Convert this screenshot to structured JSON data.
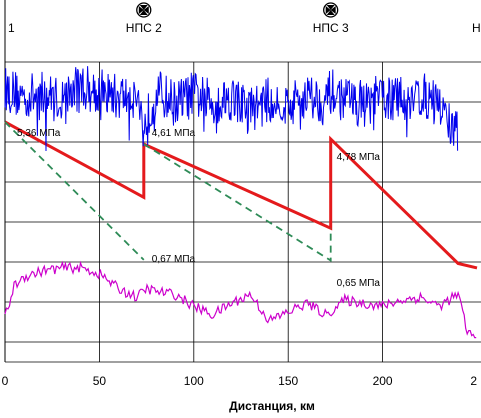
{
  "chart_data": {
    "type": "line",
    "title": "",
    "xlabel": "Дистанция, км",
    "ylabel": "",
    "xlim": [
      0,
      250
    ],
    "x_ticks": [
      "0",
      "50",
      "100",
      "150",
      "200",
      "2"
    ],
    "grid": true,
    "stations": [
      {
        "label": "1",
        "x": 0
      },
      {
        "label": "НПС 2",
        "x": 73.5
      },
      {
        "label": "НПС 3",
        "x": 172.5
      },
      {
        "label": "Н",
        "x": 250
      }
    ],
    "pressure_labels": [
      {
        "label": "5,36 МПа",
        "x": 0
      },
      {
        "label": "4,61 МПа",
        "x": 73.5
      },
      {
        "label": "4,78 МПа",
        "x": 172.5
      },
      {
        "label": "0,67 МПа",
        "x": 73.5
      },
      {
        "label": "0,65 МПа",
        "x": 172.5
      }
    ],
    "series": [
      {
        "role": "pressure_line",
        "color": "#e41a1c",
        "x": [
          0,
          73.5,
          73.5,
          172.5,
          172.5,
          240,
          250
        ],
        "y": [
          5.36,
          2.8,
          4.61,
          1.75,
          4.78,
          0.55,
          0.4
        ]
      },
      {
        "role": "hydraulic_slope_dashed",
        "color": "#2e8b57",
        "x": [
          0,
          73.5,
          73.5,
          73.5,
          172.5,
          172.5
        ],
        "y": [
          5.36,
          0.67,
          null,
          4.61,
          0.65,
          1.75
        ]
      },
      {
        "role": "noisy_upper_profile",
        "color": "#0000ee",
        "x": [
          0,
          10,
          20,
          30,
          40,
          50,
          60,
          70,
          73.5,
          80,
          90,
          100,
          110,
          120,
          130,
          140,
          150,
          160,
          170,
          172.5,
          180,
          190,
          200,
          210,
          220,
          230,
          240
        ],
        "y": [
          6.5,
          6.2,
          6.3,
          6.1,
          6.6,
          6.4,
          6.2,
          6.3,
          5.1,
          6.4,
          6.0,
          6.3,
          6.0,
          6.2,
          5.8,
          6.1,
          5.9,
          6.3,
          6.0,
          6.4,
          6.1,
          6.0,
          6.2,
          6.1,
          6.3,
          5.9,
          4.9
        ]
      },
      {
        "role": "terrain_profile",
        "color": "#cc00cc",
        "x": [
          0,
          5,
          10,
          20,
          30,
          40,
          50,
          60,
          70,
          75,
          80,
          90,
          100,
          110,
          120,
          130,
          140,
          150,
          160,
          170,
          180,
          190,
          200,
          210,
          220,
          230,
          240,
          245,
          250
        ],
        "y": [
          -1.3,
          -0.2,
          0.1,
          0.3,
          0.4,
          0.4,
          0.2,
          -0.3,
          -0.6,
          -0.3,
          -0.4,
          -0.5,
          -0.9,
          -1.2,
          -0.8,
          -0.5,
          -1.4,
          -1.1,
          -0.8,
          -1.2,
          -0.7,
          -0.8,
          -0.9,
          -0.7,
          -0.6,
          -0.9,
          -0.5,
          -1.8,
          -2.0
        ]
      }
    ]
  }
}
